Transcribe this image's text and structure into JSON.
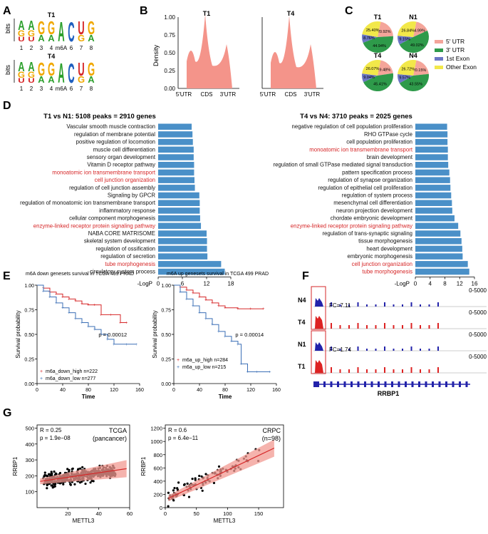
{
  "panels": {
    "A": "A",
    "B": "B",
    "C": "C",
    "D": "D",
    "E": "E",
    "F": "F",
    "G": "G"
  },
  "colors": {
    "bar": "#4a90c8",
    "red": "#d62728",
    "pink": "#f08a80",
    "blue_line": "#3b6fb6",
    "igv_blue": "#2222aa",
    "igv_red": "#dd2222",
    "pie_utr5": "#f4a59a",
    "pie_utr3": "#2e9a4a",
    "pie_exon1": "#6b76c4",
    "pie_other": "#f2e84a"
  },
  "panel_a": {
    "motifs": [
      {
        "label": "T1",
        "letters": [
          [
            "A",
            "G",
            "U"
          ],
          [
            "A",
            "G",
            "U"
          ],
          [
            "G",
            "A"
          ],
          [
            "G",
            "A"
          ],
          [
            "A"
          ],
          [
            "C"
          ],
          [
            "U",
            "G"
          ],
          [
            "G",
            "A"
          ]
        ]
      },
      {
        "label": "T4",
        "letters": [
          [
            "A",
            "G",
            "U"
          ],
          [
            "A",
            "G",
            "U"
          ],
          [
            "G",
            "A"
          ],
          [
            "G",
            "A"
          ],
          [
            "A"
          ],
          [
            "C"
          ],
          [
            "U",
            "G"
          ],
          [
            "G",
            "A"
          ]
        ]
      }
    ],
    "ylabel": "bits",
    "positions": [
      "1",
      "2",
      "3",
      "4",
      "m6A",
      "6",
      "7",
      "8"
    ]
  },
  "panel_b": {
    "plots": [
      {
        "title": "T1"
      },
      {
        "title": "T4"
      }
    ],
    "ylabel": "Density",
    "yticks": [
      "0.00",
      "0.25",
      "0.50",
      "0.75",
      "1.00"
    ],
    "xticks": [
      "5'UTR",
      "CDS",
      "3'UTR"
    ]
  },
  "panel_c": {
    "pies": [
      {
        "label": "T1",
        "values": [
          20.92,
          44.94,
          8.76,
          25.4
        ],
        "labels": [
          "20.92%",
          "44.94%",
          "8.76%",
          "25.40%"
        ]
      },
      {
        "label": "N1",
        "values": [
          14.99,
          49.02,
          9.15,
          26.84
        ],
        "labels": [
          "14.99%",
          "49.02%",
          "9.15%",
          "26.84%"
        ]
      },
      {
        "label": "T4",
        "values": [
          19.48,
          45.41,
          9.04,
          26.07
        ],
        "labels": [
          "19.48%",
          "45.41%",
          "9.04%",
          "26.07%"
        ]
      },
      {
        "label": "N4",
        "values": [
          20.15,
          43.55,
          9.57,
          26.72
        ],
        "labels": [
          "20.15%",
          "43.55%",
          "9.57%",
          "26.72%"
        ]
      }
    ],
    "legend": [
      "5' UTR",
      "3' UTR",
      "1st Exon",
      "Other Exon"
    ]
  },
  "chart_data": [
    {
      "type": "bar",
      "orientation": "horizontal",
      "title": "T1 vs N1: 5108 peaks = 2910 genes",
      "xlabel": "-LogP",
      "xlim": [
        0,
        18
      ],
      "xticks": [
        "0",
        "6",
        "12",
        "18"
      ],
      "categories": [
        "Vascular smooth muscle contraction",
        "regulation of membrane potential",
        "positive regulation of locomotion",
        "muscle cell differentiation",
        "sensory organ development",
        "Vitamin D receptor pathway",
        "monoatomic ion transmembrane transport",
        "cell junction organization",
        "regulation of cell junction assembly",
        "Signaling by GPCR",
        "regulation of monoatomic ion transmembrane transport",
        "inflammatory response",
        "cellular component morphogenesis",
        "enzyme-linked receptor protein signaling pathway",
        "NABA CORE MATRISOME",
        "skeletal system development",
        "regulation of ossification",
        "regulation of secretion",
        "tube morphogenesis",
        "circulatory system process"
      ],
      "values": [
        8.3,
        8.5,
        8.6,
        8.8,
        8.8,
        8.9,
        8.9,
        9.0,
        9.1,
        10.2,
        10.3,
        10.3,
        10.4,
        10.6,
        12.0,
        12.1,
        12.1,
        12.2,
        15.6,
        16.5
      ],
      "highlighted": [
        "monoatomic ion transmembrane transport",
        "cell junction organization",
        "enzyme-linked receptor protein signaling pathway",
        "tube morphogenesis"
      ]
    },
    {
      "type": "bar",
      "orientation": "horizontal",
      "title": "T4 vs N4: 3710 peaks = 2025 genes",
      "xlabel": "-LogP",
      "xlim": [
        0,
        16
      ],
      "xticks": [
        "0",
        "4",
        "8",
        "12",
        "16"
      ],
      "categories": [
        "negative regulation of cell population proliferation",
        "RHO GTPase cycle",
        "cell population proliferation",
        "monoatomic ion transmembrane transport",
        "brain development",
        "regulation of small GTPase mediated signal transduction",
        "pattern specification process",
        "regulation of synapse organization",
        "regulation of epithelial cell proliferation",
        "regulation of system process",
        "mesenchymal cell differentiation",
        "neuron projection development",
        "chordate embryonic development",
        "enzyme-linked receptor protein signaling pathway",
        "regulation of trans-synaptic signaling",
        "tissue morphogenesis",
        "heart development",
        "embryonic morphogenesis",
        "cell junction organization",
        "tube morphogenesis"
      ],
      "values": [
        8.6,
        8.7,
        8.7,
        8.8,
        8.8,
        8.9,
        9.2,
        9.4,
        9.5,
        9.7,
        9.9,
        10.0,
        10.6,
        11.6,
        12.2,
        12.5,
        12.7,
        12.8,
        14.2,
        14.6
      ],
      "highlighted": [
        "monoatomic ion transmembrane transport",
        "enzyme-linked receptor protein signaling pathway",
        "cell junction organization",
        "tube morphogenesis"
      ]
    },
    {
      "type": "line",
      "subtype": "kaplan-meier",
      "title": "m6A down genesets survival in TCGA 499 PRAD",
      "xlabel": "Time",
      "ylabel": "Survival probability",
      "xlim": [
        0,
        160
      ],
      "ylim": [
        0,
        1
      ],
      "xticks": [
        "0",
        "40",
        "80",
        "120",
        "160"
      ],
      "yticks": [
        "0.00",
        "0.25",
        "0.50",
        "0.75",
        "1.00"
      ],
      "pvalue": "p = 0.00012",
      "series": [
        {
          "name": "m6a_down_high n=222",
          "color": "red",
          "x": [
            0,
            10,
            20,
            30,
            40,
            50,
            60,
            70,
            80,
            90,
            100,
            115,
            130,
            140
          ],
          "y": [
            1.0,
            0.97,
            0.93,
            0.91,
            0.88,
            0.86,
            0.84,
            0.81,
            0.8,
            0.8,
            0.7,
            0.7,
            0.62,
            0.62
          ]
        },
        {
          "name": "m6a_down_low n=277",
          "color": "blue",
          "x": [
            0,
            10,
            20,
            30,
            40,
            50,
            60,
            70,
            80,
            90,
            100,
            110,
            120,
            140,
            155
          ],
          "y": [
            1.0,
            0.94,
            0.88,
            0.82,
            0.77,
            0.72,
            0.66,
            0.62,
            0.58,
            0.55,
            0.5,
            0.45,
            0.4,
            0.4,
            0.4
          ]
        }
      ]
    },
    {
      "type": "line",
      "subtype": "kaplan-meier",
      "title": "m6A up genesets survival in TCGA 499 PRAD",
      "xlabel": "Time",
      "ylabel": "Survival probability",
      "xlim": [
        0,
        160
      ],
      "ylim": [
        0,
        1
      ],
      "xticks": [
        "0",
        "40",
        "80",
        "120",
        "160"
      ],
      "yticks": [
        "0.00",
        "0.25",
        "0.50",
        "0.75",
        "1.00"
      ],
      "pvalue": "p = 0.00014",
      "series": [
        {
          "name": "m6a_up_high n=284",
          "color": "red",
          "x": [
            0,
            10,
            20,
            30,
            40,
            50,
            60,
            70,
            80,
            100,
            120,
            140
          ],
          "y": [
            1.0,
            0.98,
            0.95,
            0.92,
            0.88,
            0.85,
            0.82,
            0.79,
            0.77,
            0.76,
            0.76,
            0.76
          ]
        },
        {
          "name": "m6a_up_low n=215",
          "color": "blue",
          "x": [
            0,
            10,
            20,
            30,
            40,
            50,
            60,
            70,
            80,
            90,
            100,
            105,
            115,
            130,
            150
          ],
          "y": [
            1.0,
            0.93,
            0.86,
            0.79,
            0.72,
            0.66,
            0.6,
            0.53,
            0.48,
            0.43,
            0.4,
            0.2,
            0.12,
            0.12,
            0.12
          ]
        }
      ]
    },
    {
      "type": "scatter",
      "title": "TCGA",
      "subtitle": "(pancancer)",
      "xlabel": "METTL3",
      "ylabel": "RRBP1",
      "xlim": [
        0,
        60
      ],
      "ylim": [
        0,
        520
      ],
      "xticks": [
        "20",
        "40",
        "60"
      ],
      "yticks": [
        "100",
        "200",
        "300",
        "400",
        "500"
      ],
      "stats": [
        "R = 0.25",
        "p = 1.9e−08"
      ],
      "fit": {
        "x": [
          2,
          58
        ],
        "y": [
          165,
          245
        ]
      }
    },
    {
      "type": "scatter",
      "title": "CRPC",
      "subtitle": "(n=98)",
      "xlabel": "METTL3",
      "ylabel": "RRBP1",
      "xlim": [
        0,
        190
      ],
      "ylim": [
        0,
        1250
      ],
      "xticks": [
        "0",
        "50",
        "100",
        "150"
      ],
      "yticks": [
        "0",
        "200",
        "400",
        "600",
        "800",
        "1000",
        "1200"
      ],
      "stats": [
        "R = 0.6",
        "p = 6.4e−11"
      ],
      "fit": {
        "x": [
          5,
          175
        ],
        "y": [
          140,
          900
        ]
      }
    }
  ],
  "panel_f": {
    "tracks": [
      {
        "label": "N4",
        "range": "0-5000",
        "color": "blue"
      },
      {
        "label": "T4",
        "range": "0-5000",
        "color": "red",
        "fc": "FC=7.11"
      },
      {
        "label": "N1",
        "range": "0-5000",
        "color": "blue"
      },
      {
        "label": "T1",
        "range": "0-5000",
        "color": "red",
        "fc": "FC=1.74"
      }
    ],
    "gene": "RRBP1"
  }
}
